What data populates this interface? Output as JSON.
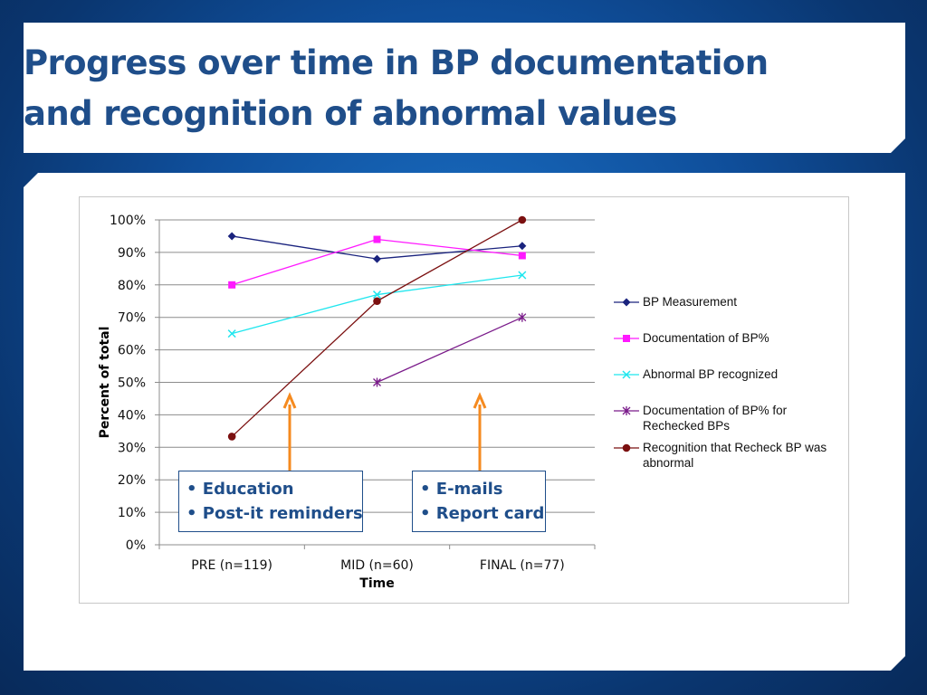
{
  "slide": {
    "title": "Progress over time in BP documentation and recognition of abnormal values"
  },
  "chart_data": {
    "type": "line",
    "xlabel": "Time",
    "ylabel": "Percent of total",
    "categories": [
      "PRE (n=119)",
      "MID (n=60)",
      "FINAL (n=77)"
    ],
    "ylim": [
      0,
      100
    ],
    "yticks": [
      0,
      10,
      20,
      30,
      40,
      50,
      60,
      70,
      80,
      90,
      100
    ],
    "ytick_labels": [
      "0%",
      "10%",
      "20%",
      "30%",
      "40%",
      "50%",
      "60%",
      "70%",
      "80%",
      "90%",
      "100%"
    ],
    "grid": "horizontal",
    "legend_position": "right",
    "series": [
      {
        "name": "BP Measurement",
        "values": [
          95,
          88,
          92
        ],
        "color": "#1a237e",
        "marker": "diamond"
      },
      {
        "name": "Documentation of BP%",
        "values": [
          80,
          94,
          89
        ],
        "color": "#ff19ff",
        "marker": "square"
      },
      {
        "name": "Abnormal BP recognized",
        "values": [
          65,
          77,
          83
        ],
        "color": "#1ee6ee",
        "marker": "x"
      },
      {
        "name": "Documentation of BP% for Rechecked BPs",
        "values": [
          null,
          50,
          70
        ],
        "color": "#7a1a8a",
        "marker": "star"
      },
      {
        "name": "Recognition that Recheck BP was abnormal",
        "values": [
          33.3,
          75,
          100
        ],
        "color": "#7b1010",
        "marker": "circle"
      }
    ],
    "annotations": [
      {
        "lines": [
          "• Education",
          "• Post-it reminders"
        ],
        "arrow_color": "#f58a1f",
        "arrow_target": "between PRE and MID"
      },
      {
        "lines": [
          "• E-mails",
          "• Report card"
        ],
        "arrow_color": "#f58a1f",
        "arrow_target": "between MID and FINAL"
      }
    ]
  }
}
